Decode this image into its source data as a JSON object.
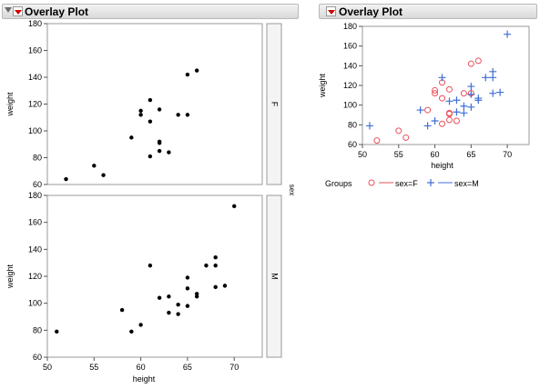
{
  "left_report": {
    "title": "Overlay Plot"
  },
  "right_report": {
    "title": "Overlay Plot"
  },
  "chart_data": [
    {
      "type": "scatter",
      "title": "Overlay Plot",
      "xlabel": "height",
      "ylabel": "weight",
      "group_axis_label": "sex",
      "xlim": [
        50,
        73
      ],
      "x_ticks": [
        50,
        55,
        60,
        65,
        70
      ],
      "y_ticks": [
        60,
        80,
        100,
        120,
        140,
        160,
        180
      ],
      "panels": [
        {
          "label": "F",
          "ylim": [
            60,
            180
          ],
          "x": [
            52,
            55,
            56,
            59,
            60,
            60,
            61,
            61,
            61,
            62,
            62,
            62,
            62,
            63,
            64,
            65,
            65,
            66
          ],
          "y": [
            64,
            74,
            67,
            95,
            112,
            115,
            123,
            107,
            81,
            116,
            92,
            91,
            85,
            84,
            112,
            112,
            142,
            145
          ]
        },
        {
          "label": "M",
          "ylim": [
            60,
            180
          ],
          "x": [
            51,
            58,
            59,
            60,
            61,
            62,
            63,
            63,
            64,
            64,
            65,
            65,
            65,
            66,
            66,
            67,
            68,
            68,
            68,
            69,
            70
          ],
          "y": [
            79,
            95,
            79,
            84,
            128,
            104,
            93,
            105,
            92,
            99,
            98,
            111,
            119,
            107,
            105,
            128,
            112,
            128,
            134,
            113,
            172
          ]
        }
      ]
    },
    {
      "type": "scatter",
      "title": "Overlay Plot",
      "xlabel": "height",
      "ylabel": "weight",
      "xlim": [
        50,
        73
      ],
      "ylim": [
        60,
        180
      ],
      "x_ticks": [
        50,
        55,
        60,
        65,
        70
      ],
      "y_ticks": [
        60,
        80,
        100,
        120,
        140,
        160,
        180
      ],
      "legend_title": "Groups",
      "legend_position": "bottom",
      "series": [
        {
          "name": "sex=F",
          "marker": "circle",
          "color": "#e8505b",
          "x": [
            52,
            55,
            56,
            59,
            60,
            60,
            61,
            61,
            61,
            62,
            62,
            62,
            62,
            63,
            64,
            65,
            65,
            66
          ],
          "y": [
            64,
            74,
            67,
            95,
            112,
            115,
            123,
            107,
            81,
            116,
            92,
            91,
            85,
            84,
            112,
            112,
            142,
            145
          ]
        },
        {
          "name": "sex=M",
          "marker": "plus",
          "color": "#3f6fd8",
          "x": [
            51,
            58,
            59,
            60,
            61,
            62,
            63,
            63,
            64,
            64,
            65,
            65,
            65,
            66,
            66,
            67,
            68,
            68,
            68,
            69,
            70
          ],
          "y": [
            79,
            95,
            79,
            84,
            128,
            104,
            93,
            105,
            92,
            99,
            98,
            111,
            119,
            107,
            105,
            128,
            112,
            128,
            134,
            113,
            172
          ]
        }
      ]
    }
  ]
}
